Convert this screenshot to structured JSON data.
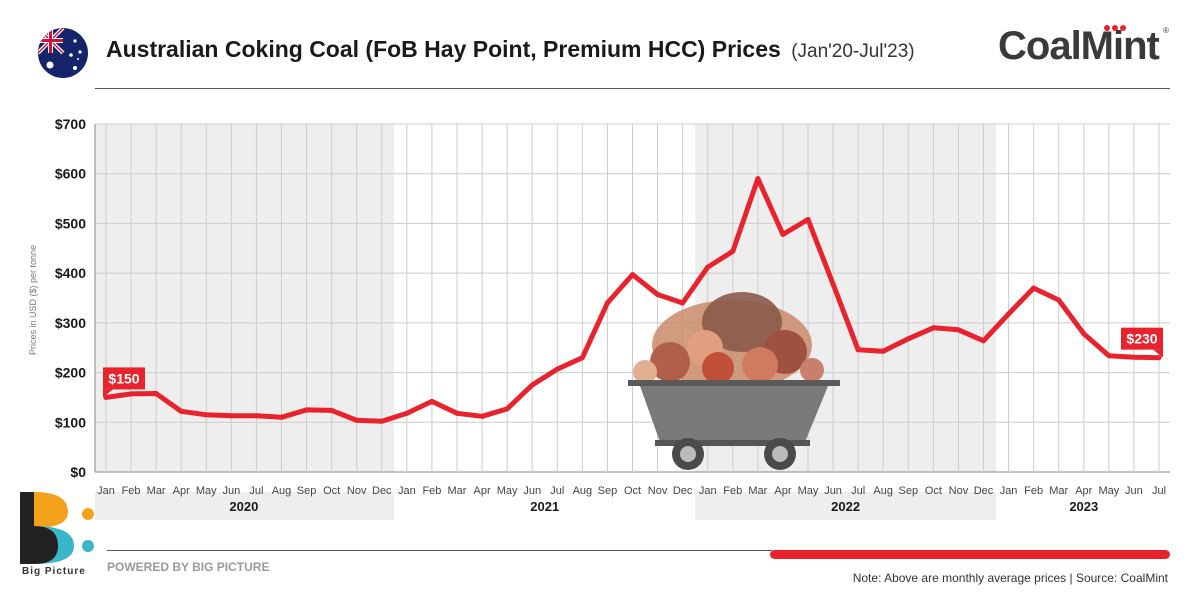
{
  "header": {
    "title": "Australian Coking Coal (FoB Hay Point, Premium HCC) Prices",
    "subtitle": "(Jan'20-Jul'23)",
    "brand": "CoalMint",
    "brand_reg": "®",
    "flag_icon": "australia-flag-icon"
  },
  "footer": {
    "logo_icon": "big-picture-logo-icon",
    "logo_name": "Big Picture",
    "powered": "POWERED BY BIG PICTURE",
    "note": "Note: Above are monthly average prices | Source: CoalMint"
  },
  "colors": {
    "line": "#e8232d",
    "grid": "#cccccc",
    "band": "#eeeeee",
    "text": "#1a1a1a",
    "axis_text": "#444444",
    "accent_orange": "#f4a21c",
    "accent_teal": "#39b7c9"
  },
  "chart_data": {
    "type": "line",
    "title": "Australian Coking Coal (FoB Hay Point, Premium HCC) Prices",
    "ylabel": "Prices in USD ($) per tonne",
    "xlabel": "",
    "ylim": [
      0,
      700
    ],
    "yticks": [
      "$0",
      "$100",
      "$200",
      "$300",
      "$400",
      "$500",
      "$600",
      "$700"
    ],
    "grid": true,
    "months": [
      "Jan",
      "Feb",
      "Mar",
      "Apr",
      "May",
      "Jun",
      "Jul",
      "Aug",
      "Sep",
      "Oct",
      "Nov",
      "Dec",
      "Jan",
      "Feb",
      "Mar",
      "Apr",
      "May",
      "Jun",
      "Jul",
      "Aug",
      "Sep",
      "Oct",
      "Nov",
      "Dec",
      "Jan",
      "Feb",
      "Mar",
      "Apr",
      "May",
      "Jun",
      "Jul",
      "Aug",
      "Sep",
      "Oct",
      "Nov",
      "Dec",
      "Jan",
      "Feb",
      "Mar",
      "Apr",
      "May",
      "Jun",
      "Jul"
    ],
    "years": [
      {
        "label": "2020",
        "start": 0,
        "end": 11,
        "shaded": true
      },
      {
        "label": "2021",
        "start": 12,
        "end": 23,
        "shaded": false
      },
      {
        "label": "2022",
        "start": 24,
        "end": 35,
        "shaded": true
      },
      {
        "label": "2023",
        "start": 36,
        "end": 42,
        "shaded": false
      }
    ],
    "series": [
      {
        "values": [
          150,
          157,
          158,
          122,
          115,
          113,
          113,
          110,
          125,
          124,
          104,
          102,
          118,
          142,
          118,
          112,
          127,
          175,
          207,
          230,
          340,
          397,
          357,
          340,
          412,
          444,
          590,
          478,
          508,
          378,
          246,
          243,
          268,
          290,
          286,
          264,
          318,
          370,
          346,
          278,
          234,
          231,
          230
        ]
      }
    ],
    "annotations": [
      {
        "index": 0,
        "label": "$150"
      },
      {
        "index": 42,
        "label": "$230"
      }
    ]
  }
}
